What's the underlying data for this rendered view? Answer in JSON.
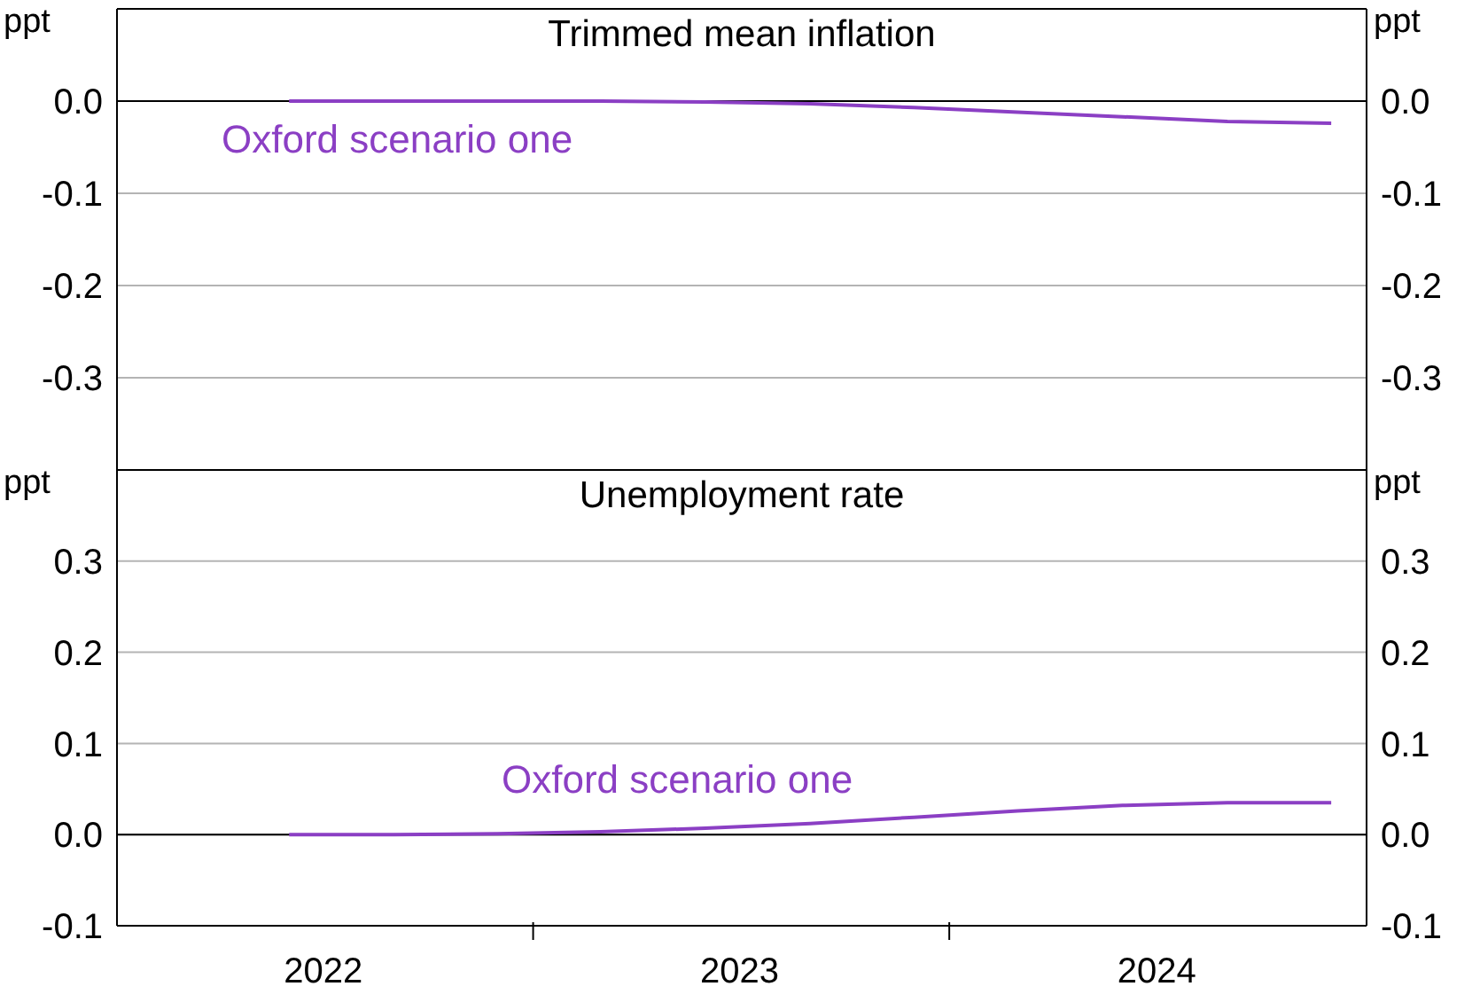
{
  "chart_data": [
    {
      "type": "line",
      "title": "Trimmed mean inflation",
      "ylabel": "ppt",
      "y2label": "ppt",
      "tick_labels": "y",
      "grid": "y",
      "x": [
        "2022-06",
        "2022-09",
        "2022-12",
        "2023-03",
        "2023-06",
        "2023-09",
        "2023-12",
        "2024-03",
        "2024-06",
        "2024-09",
        "2024-12"
      ],
      "series": [
        {
          "name": "Oxford scenario one",
          "color": "#8b3fc4",
          "values": [
            0,
            0,
            0,
            0,
            -0.001,
            -0.003,
            -0.007,
            -0.012,
            -0.017,
            -0.022,
            -0.024
          ]
        }
      ],
      "xlim": [
        "2022-01-01",
        "2025-01-01"
      ],
      "ylim": [
        -0.4,
        0.1
      ],
      "yticks": [
        {
          "value": 0,
          "label": "0.0"
        },
        {
          "value": -0.1,
          "label": "-0.1"
        },
        {
          "value": -0.2,
          "label": "-0.2"
        },
        {
          "value": -0.3,
          "label": "-0.3"
        }
      ],
      "y2lim": [
        -0.4,
        0.1
      ],
      "y2ticks": [
        {
          "value": 0,
          "label": "0.0"
        },
        {
          "value": -0.1,
          "label": "-0.1"
        },
        {
          "value": -0.2,
          "label": "-0.2"
        },
        {
          "value": -0.3,
          "label": "-0.3"
        }
      ],
      "ref_lines": [
        {
          "axis": "y",
          "value": 0,
          "color": "#000000"
        }
      ]
    },
    {
      "type": "line",
      "title": "Unemployment rate",
      "ylabel": "ppt",
      "y2label": "ppt",
      "grid": "y",
      "x": [
        "2022-06",
        "2022-09",
        "2022-12",
        "2023-03",
        "2023-06",
        "2023-09",
        "2023-12",
        "2024-03",
        "2024-06",
        "2024-09",
        "2024-12"
      ],
      "series": [
        {
          "name": "Oxford scenario one",
          "color": "#8b3fc4",
          "values": [
            0,
            0,
            0.001,
            0.003,
            0.007,
            0.012,
            0.019,
            0.026,
            0.032,
            0.035,
            0.035
          ]
        }
      ],
      "xlim": [
        "2022-01-01",
        "2025-01-01"
      ],
      "xticks": [
        {
          "value": "2022-07-01",
          "label": "2022"
        },
        {
          "value": "2023-01-01",
          "label": null
        },
        {
          "value": "2023-07-01",
          "label": "2023"
        },
        {
          "value": "2024-01-01",
          "label": null
        },
        {
          "value": "2024-07-01",
          "label": "2024"
        }
      ],
      "ylim": [
        -0.1,
        0.4
      ],
      "yticks": [
        {
          "value": 0.3,
          "label": "0.3"
        },
        {
          "value": 0.2,
          "label": "0.2"
        },
        {
          "value": 0.1,
          "label": "0.1"
        },
        {
          "value": 0,
          "label": "0.0"
        },
        {
          "value": -0.1,
          "label": "-0.1"
        }
      ],
      "y2lim": [
        -0.1,
        0.4
      ],
      "y2ticks": [
        {
          "value": 0.3,
          "label": "0.3"
        },
        {
          "value": 0.2,
          "label": "0.2"
        },
        {
          "value": 0.1,
          "label": "0.1"
        },
        {
          "value": 0,
          "label": "0.0"
        },
        {
          "value": -0.1,
          "label": "-0.1"
        }
      ],
      "ref_lines": [
        {
          "axis": "y",
          "value": 0,
          "color": "#000000"
        }
      ]
    }
  ]
}
